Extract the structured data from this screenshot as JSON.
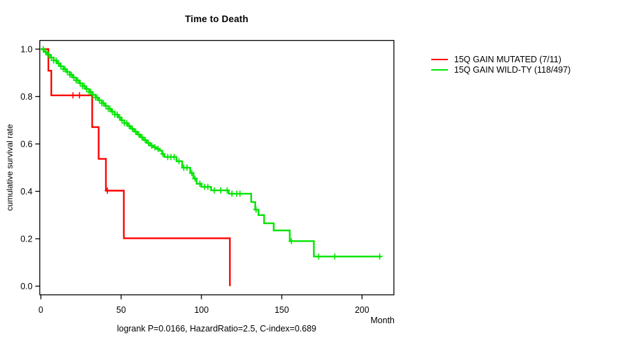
{
  "title": "Time to Death",
  "axes": {
    "y_label": "cumulative survival rate",
    "x_label": "Month"
  },
  "footer": "logrank P=0.0166, HazardRatio=2.5, C-index=0.689",
  "colors": {
    "mutated": "#ff0000",
    "wildtype": "#00e400",
    "axis": "#000000"
  },
  "chart_data": {
    "type": "line",
    "subtype": "kaplan-meier-step",
    "title": "Time to Death",
    "xlabel": "Month",
    "ylabel": "cumulative survival rate",
    "xlim": [
      0,
      220
    ],
    "ylim": [
      0.0,
      1.0
    ],
    "x_ticks": [
      0,
      50,
      100,
      150,
      200
    ],
    "y_ticks": [
      0.0,
      0.2,
      0.4,
      0.6,
      0.8,
      1.0
    ],
    "grid": false,
    "legend_position": "right-outside",
    "series": [
      {
        "name": "15Q GAIN MUTATED (7/11)",
        "color": "#ff0000",
        "steps": [
          [
            0,
            1.0
          ],
          [
            4.7,
            0.909
          ],
          [
            6.5,
            0.805
          ],
          [
            32,
            0.671
          ],
          [
            36,
            0.537
          ],
          [
            40.5,
            0.403
          ],
          [
            51.7,
            0.202
          ],
          [
            117.7,
            0.0
          ]
        ],
        "censors": [
          20,
          24,
          41.5
        ],
        "end_month": 117.7
      },
      {
        "name": "15Q GAIN WILD-TY (118/497)",
        "color": "#00e400",
        "steps": [
          [
            0,
            1.0
          ],
          [
            2,
            0.988
          ],
          [
            4,
            0.976
          ],
          [
            6,
            0.964
          ],
          [
            8,
            0.952
          ],
          [
            10,
            0.94
          ],
          [
            12,
            0.928
          ],
          [
            14,
            0.916
          ],
          [
            16,
            0.904
          ],
          [
            18,
            0.892
          ],
          [
            20,
            0.88
          ],
          [
            22,
            0.868
          ],
          [
            24,
            0.856
          ],
          [
            26,
            0.844
          ],
          [
            28,
            0.832
          ],
          [
            30,
            0.82
          ],
          [
            32,
            0.808
          ],
          [
            34,
            0.796
          ],
          [
            36,
            0.784
          ],
          [
            38,
            0.772
          ],
          [
            40,
            0.76
          ],
          [
            42,
            0.748
          ],
          [
            44,
            0.736
          ],
          [
            46,
            0.724
          ],
          [
            48,
            0.712
          ],
          [
            50,
            0.7
          ],
          [
            52,
            0.688
          ],
          [
            54,
            0.676
          ],
          [
            56,
            0.664
          ],
          [
            58,
            0.652
          ],
          [
            60,
            0.64
          ],
          [
            62,
            0.628
          ],
          [
            64,
            0.616
          ],
          [
            66,
            0.604
          ],
          [
            68,
            0.593
          ],
          [
            70,
            0.586
          ],
          [
            72,
            0.579
          ],
          [
            74,
            0.572
          ],
          [
            75.5,
            0.558
          ],
          [
            77,
            0.545
          ],
          [
            84.5,
            0.527
          ],
          [
            88,
            0.5
          ],
          [
            93,
            0.477
          ],
          [
            95,
            0.454
          ],
          [
            97,
            0.432
          ],
          [
            100,
            0.419
          ],
          [
            106,
            0.404
          ],
          [
            117,
            0.39
          ],
          [
            131,
            0.355
          ],
          [
            133.5,
            0.323
          ],
          [
            135.5,
            0.3
          ],
          [
            139,
            0.265
          ],
          [
            145,
            0.235
          ],
          [
            155,
            0.19
          ],
          [
            170,
            0.125
          ]
        ],
        "censors": [
          1.5,
          3,
          5,
          6.5,
          8,
          9.5,
          11,
          12.5,
          14,
          15,
          16.5,
          18,
          19,
          20.5,
          22,
          23,
          24.5,
          26,
          27,
          28.5,
          30,
          31,
          32.5,
          34,
          35,
          36.5,
          38,
          39,
          40.5,
          42,
          43,
          44.5,
          46,
          47.5,
          49,
          50.5,
          52,
          53.5,
          55,
          57,
          59,
          61,
          63,
          65,
          67,
          69,
          71,
          73,
          76,
          79,
          81,
          83,
          86,
          89,
          91,
          94,
          96,
          99,
          102,
          104,
          108,
          112,
          116,
          119,
          122,
          124,
          134,
          156,
          173,
          183,
          211
        ],
        "end_month": 212
      }
    ]
  }
}
